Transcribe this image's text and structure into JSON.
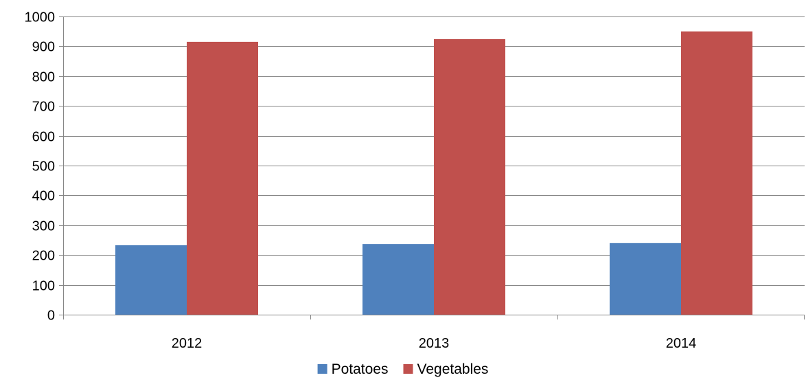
{
  "chart_data": {
    "type": "bar",
    "title": "",
    "xlabel": "",
    "ylabel": "",
    "categories": [
      "2012",
      "2013",
      "2014"
    ],
    "series": [
      {
        "name": "Potatoes",
        "values": [
          233,
          237,
          240
        ],
        "color": "#4F81BD"
      },
      {
        "name": "Vegetables",
        "values": [
          915,
          924,
          950
        ],
        "color": "#C0504D"
      }
    ],
    "ylim": [
      0,
      1000
    ],
    "yticks": [
      0,
      100,
      200,
      300,
      400,
      500,
      600,
      700,
      800,
      900,
      1000
    ],
    "ytick_labels": [
      "0",
      "100",
      "200",
      "300",
      "400",
      "500",
      "600",
      "700",
      "800",
      "900",
      "1000"
    ],
    "grid": true,
    "legend_position": "bottom"
  }
}
